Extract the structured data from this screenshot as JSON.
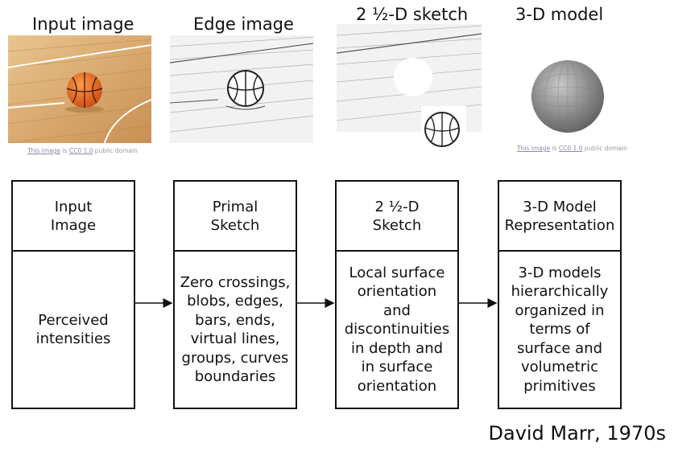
{
  "panels": [
    {
      "title": "Input image",
      "credit": {
        "link1": "This image",
        "mid": " is ",
        "link2": "CC0 1.0",
        "tail": " public domain"
      }
    },
    {
      "title": "Edge image"
    },
    {
      "title": "2 ½-D sketch"
    },
    {
      "title": "3-D model",
      "credit": {
        "link1": "This image",
        "mid": " is ",
        "link2": "CC0 1.0",
        "tail": " public domain"
      }
    }
  ],
  "stages": [
    {
      "header": "Input\nImage",
      "body": "Perceived\nintensities"
    },
    {
      "header": "Primal\nSketch",
      "body": "Zero crossings,\nblobs, edges,\nbars, ends,\nvirtual lines,\ngroups, curves\nboundaries"
    },
    {
      "header": "2 ½-D\nSketch",
      "body": "Local surface\norientation\nand\ndiscontinuities\nin depth and\nin surface\norientation"
    },
    {
      "header": "3-D Model\nRepresentation",
      "body": "3-D models\nhierarchically\norganized in\nterms of\nsurface and\nvolumetric\nprimitives"
    }
  ],
  "attribution": "David Marr, 1970s",
  "colors": {
    "floor": "#d9a86a",
    "ball": "#e8641e",
    "sphere": "#9a9a9a"
  }
}
